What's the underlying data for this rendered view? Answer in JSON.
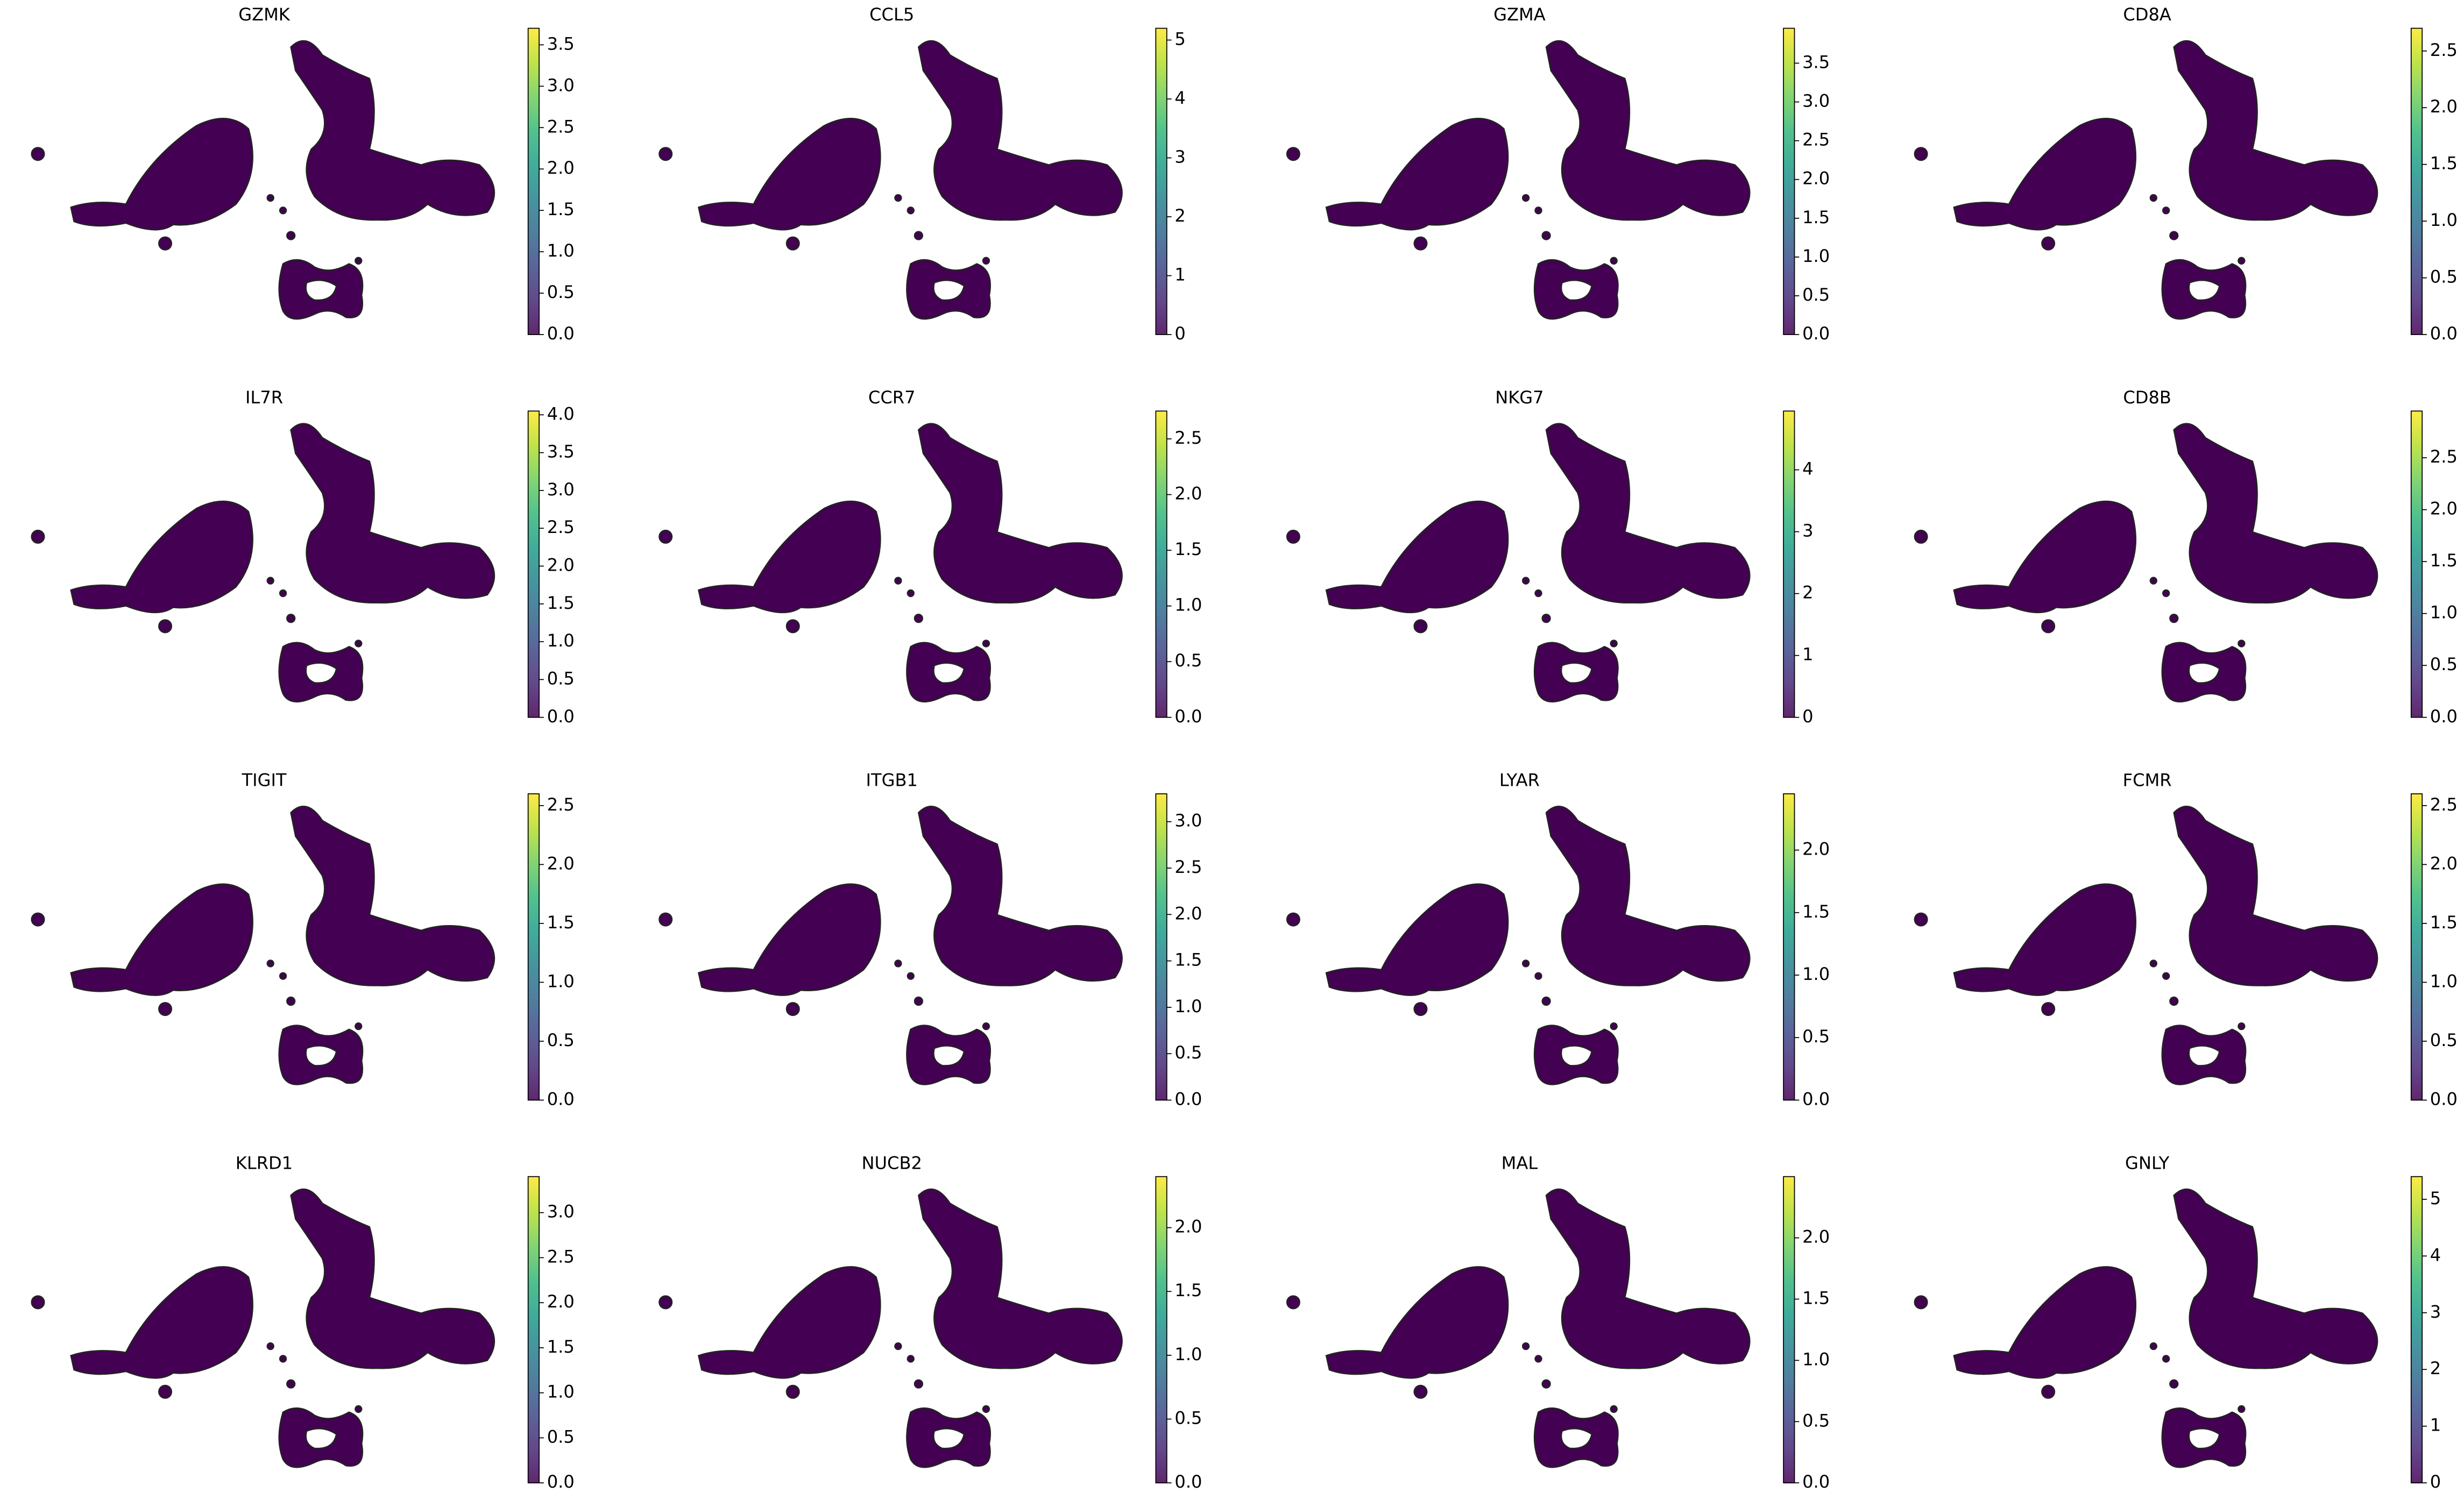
{
  "chart_data": [
    {
      "type": "embedding",
      "title": "GZMK",
      "colormap": "viridis",
      "clim": [
        0,
        3.7
      ],
      "cticks": [
        {
          "value": 0,
          "label": "0.0"
        },
        0.5,
        {
          "value": 1,
          "label": "1.0"
        },
        1.5,
        {
          "value": 2,
          "label": "2.0"
        },
        2.5,
        {
          "value": 3,
          "label": "3.0"
        },
        3.5
      ]
    },
    {
      "type": "embedding",
      "title": "CCL5",
      "colormap": "viridis",
      "clim": [
        0,
        5.2
      ],
      "cticks": [
        0,
        1,
        2,
        3,
        4,
        5
      ]
    },
    {
      "type": "embedding",
      "title": "GZMA",
      "colormap": "viridis",
      "clim": [
        0,
        3.95
      ],
      "cticks": [
        {
          "value": 0,
          "label": "0.0"
        },
        0.5,
        {
          "value": 1,
          "label": "1.0"
        },
        1.5,
        {
          "value": 2,
          "label": "2.0"
        },
        2.5,
        {
          "value": 3,
          "label": "3.0"
        },
        3.5
      ]
    },
    {
      "type": "embedding",
      "title": "CD8A",
      "colormap": "viridis",
      "clim": [
        0,
        2.7
      ],
      "cticks": [
        {
          "value": 0,
          "label": "0.0"
        },
        0.5,
        {
          "value": 1,
          "label": "1.0"
        },
        1.5,
        {
          "value": 2,
          "label": "2.0"
        },
        2.5
      ]
    },
    {
      "type": "embedding",
      "title": "IL7R",
      "colormap": "viridis",
      "clim": [
        0,
        4.05
      ],
      "cticks": [
        {
          "value": 0,
          "label": "0.0"
        },
        0.5,
        {
          "value": 1,
          "label": "1.0"
        },
        1.5,
        {
          "value": 2,
          "label": "2.0"
        },
        2.5,
        {
          "value": 3,
          "label": "3.0"
        },
        3.5,
        {
          "value": 4,
          "label": "4.0"
        }
      ]
    },
    {
      "type": "embedding",
      "title": "CCR7",
      "colormap": "viridis",
      "clim": [
        0,
        2.75
      ],
      "cticks": [
        {
          "value": 0,
          "label": "0.0"
        },
        0.5,
        {
          "value": 1,
          "label": "1.0"
        },
        1.5,
        {
          "value": 2,
          "label": "2.0"
        },
        2.5
      ]
    },
    {
      "type": "embedding",
      "title": "NKG7",
      "colormap": "viridis",
      "clim": [
        0,
        4.95
      ],
      "cticks": [
        0,
        1,
        2,
        3,
        4
      ]
    },
    {
      "type": "embedding",
      "title": "CD8B",
      "colormap": "viridis",
      "clim": [
        0,
        2.95
      ],
      "cticks": [
        {
          "value": 0,
          "label": "0.0"
        },
        0.5,
        {
          "value": 1,
          "label": "1.0"
        },
        1.5,
        {
          "value": 2,
          "label": "2.0"
        },
        2.5
      ]
    },
    {
      "type": "embedding",
      "title": "TIGIT",
      "colormap": "viridis",
      "clim": [
        0,
        2.6
      ],
      "cticks": [
        {
          "value": 0,
          "label": "0.0"
        },
        0.5,
        {
          "value": 1,
          "label": "1.0"
        },
        1.5,
        {
          "value": 2,
          "label": "2.0"
        },
        2.5
      ]
    },
    {
      "type": "embedding",
      "title": "ITGB1",
      "colormap": "viridis",
      "clim": [
        0,
        3.3
      ],
      "cticks": [
        {
          "value": 0,
          "label": "0.0"
        },
        0.5,
        {
          "value": 1,
          "label": "1.0"
        },
        1.5,
        {
          "value": 2,
          "label": "2.0"
        },
        2.5,
        {
          "value": 3,
          "label": "3.0"
        }
      ]
    },
    {
      "type": "embedding",
      "title": "LYAR",
      "colormap": "viridis",
      "clim": [
        0,
        2.45
      ],
      "cticks": [
        {
          "value": 0,
          "label": "0.0"
        },
        0.5,
        {
          "value": 1,
          "label": "1.0"
        },
        1.5,
        {
          "value": 2,
          "label": "2.0"
        }
      ]
    },
    {
      "type": "embedding",
      "title": "FCMR",
      "colormap": "viridis",
      "clim": [
        0,
        2.6
      ],
      "cticks": [
        {
          "value": 0,
          "label": "0.0"
        },
        0.5,
        {
          "value": 1,
          "label": "1.0"
        },
        1.5,
        {
          "value": 2,
          "label": "2.0"
        },
        2.5
      ]
    },
    {
      "type": "embedding",
      "title": "KLRD1",
      "colormap": "viridis",
      "clim": [
        0,
        3.4
      ],
      "cticks": [
        {
          "value": 0,
          "label": "0.0"
        },
        0.5,
        {
          "value": 1,
          "label": "1.0"
        },
        1.5,
        {
          "value": 2,
          "label": "2.0"
        },
        2.5,
        {
          "value": 3,
          "label": "3.0"
        }
      ]
    },
    {
      "type": "embedding",
      "title": "NUCB2",
      "colormap": "viridis",
      "clim": [
        0,
        2.4
      ],
      "cticks": [
        {
          "value": 0,
          "label": "0.0"
        },
        0.5,
        {
          "value": 1,
          "label": "1.0"
        },
        1.5,
        {
          "value": 2,
          "label": "2.0"
        }
      ]
    },
    {
      "type": "embedding",
      "title": "MAL",
      "colormap": "viridis",
      "clim": [
        0,
        2.5
      ],
      "cticks": [
        {
          "value": 0,
          "label": "0.0"
        },
        0.5,
        {
          "value": 1,
          "label": "1.0"
        },
        1.5,
        {
          "value": 2,
          "label": "2.0"
        }
      ]
    },
    {
      "type": "embedding",
      "title": "GNLY",
      "colormap": "viridis",
      "clim": [
        0,
        5.4
      ],
      "cticks": [
        0,
        1,
        2,
        3,
        4,
        5
      ]
    }
  ]
}
